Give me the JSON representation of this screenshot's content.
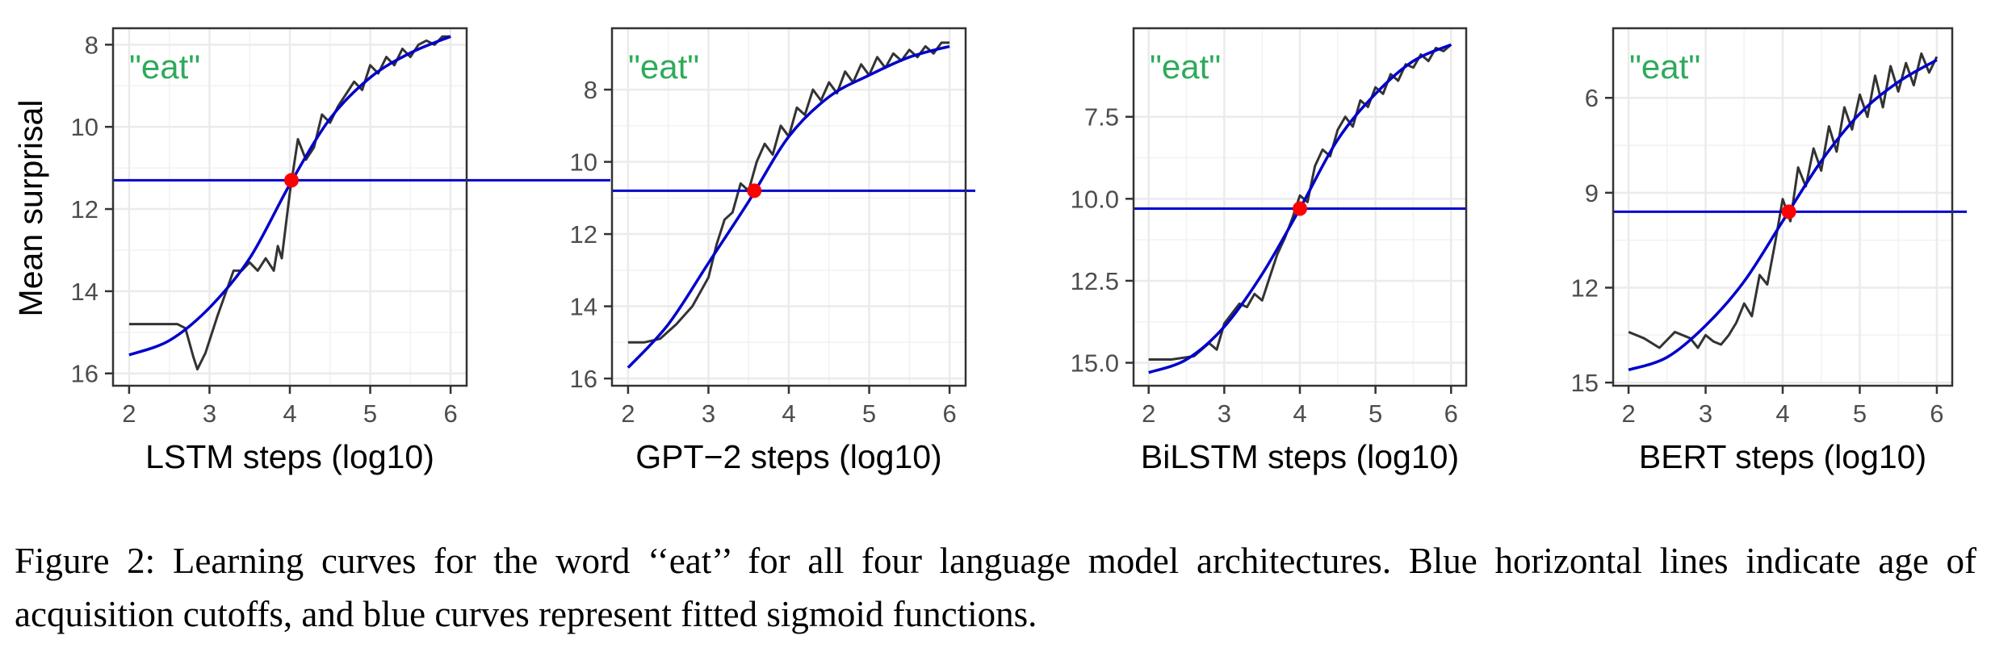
{
  "ylabel": "Mean surprisal",
  "caption": "Figure 2: Learning curves for the word ‘‘eat’’ for all four language model architectures. Blue horizontal lines indicate age of acquisition cutoffs, and blue curves represent fitted sigmoid functions.",
  "colors": {
    "fit_curve": "#0000cc",
    "cutoff_line": "#0000cc",
    "observed": "#333333",
    "aoa_point": "#ff0000",
    "word_label": "#2eaa5a",
    "grid": "#ebebeb"
  },
  "chart_data": [
    {
      "type": "line",
      "model": "LSTM",
      "xlabel": "LSTM steps (log10)",
      "annotation": "\"eat\"",
      "x_ticks": [
        2,
        3,
        4,
        5,
        6
      ],
      "y_ticks": [
        8,
        10,
        12,
        14,
        16
      ],
      "xlim": [
        1.8,
        6.2
      ],
      "ylim": [
        7.6,
        16.3
      ],
      "y_reversed": true,
      "cutoff": 11.3,
      "aoa": {
        "x": 4.02,
        "y": 11.3
      },
      "sigmoid": {
        "x": [
          2.0,
          2.5,
          3.0,
          3.5,
          4.0,
          4.5,
          5.0,
          5.5,
          6.0
        ],
        "y": [
          15.55,
          15.2,
          14.4,
          13.2,
          11.4,
          9.8,
          8.8,
          8.2,
          7.8
        ]
      },
      "series": [
        {
          "name": "observed",
          "x": [
            2.0,
            2.3,
            2.6,
            2.7,
            2.8,
            2.85,
            2.95,
            3.1,
            3.3,
            3.4,
            3.5,
            3.6,
            3.7,
            3.8,
            3.85,
            3.9,
            4.0,
            4.1,
            4.2,
            4.3,
            4.4,
            4.5,
            4.6,
            4.7,
            4.8,
            4.9,
            5.0,
            5.1,
            5.2,
            5.3,
            5.4,
            5.5,
            5.6,
            5.7,
            5.8,
            5.9,
            6.0
          ],
          "y": [
            14.8,
            14.8,
            14.8,
            14.9,
            15.6,
            15.9,
            15.5,
            14.6,
            13.5,
            13.5,
            13.3,
            13.5,
            13.2,
            13.5,
            12.9,
            13.2,
            11.6,
            10.3,
            10.8,
            10.5,
            9.7,
            9.9,
            9.5,
            9.2,
            8.9,
            9.1,
            8.5,
            8.7,
            8.3,
            8.5,
            8.1,
            8.3,
            8.0,
            7.9,
            8.0,
            7.8,
            7.8
          ]
        }
      ]
    },
    {
      "type": "line",
      "model": "GPT-2",
      "xlabel": "GPT−2 steps (log10)",
      "annotation": "\"eat\"",
      "x_ticks": [
        2,
        3,
        4,
        5,
        6
      ],
      "y_ticks": [
        8,
        10,
        12,
        14,
        16
      ],
      "xlim": [
        1.8,
        6.2
      ],
      "ylim": [
        6.3,
        16.2
      ],
      "y_reversed": true,
      "cutoff": 10.8,
      "aoa": {
        "x": 3.57,
        "y": 10.8
      },
      "sigmoid": {
        "x": [
          2.0,
          2.5,
          3.0,
          3.5,
          4.0,
          4.5,
          5.0,
          5.5,
          6.0
        ],
        "y": [
          15.7,
          14.5,
          12.8,
          11.1,
          9.3,
          8.2,
          7.6,
          7.1,
          6.8
        ]
      },
      "series": [
        {
          "name": "observed",
          "x": [
            2.0,
            2.2,
            2.4,
            2.6,
            2.8,
            3.0,
            3.1,
            3.2,
            3.3,
            3.4,
            3.5,
            3.6,
            3.7,
            3.8,
            3.9,
            4.0,
            4.1,
            4.2,
            4.3,
            4.4,
            4.5,
            4.6,
            4.7,
            4.8,
            4.9,
            5.0,
            5.1,
            5.2,
            5.3,
            5.4,
            5.5,
            5.6,
            5.7,
            5.8,
            5.9,
            6.0
          ],
          "y": [
            15.0,
            15.0,
            14.9,
            14.5,
            14.0,
            13.2,
            12.3,
            11.6,
            11.4,
            10.6,
            10.8,
            10.0,
            9.5,
            9.8,
            9.0,
            9.3,
            8.5,
            8.7,
            8.0,
            8.3,
            7.8,
            8.1,
            7.5,
            7.8,
            7.3,
            7.6,
            7.1,
            7.4,
            7.0,
            7.2,
            6.9,
            7.1,
            6.8,
            7.0,
            6.7,
            6.7
          ]
        }
      ]
    },
    {
      "type": "line",
      "model": "BiLSTM",
      "xlabel": "BiLSTM steps (log10)",
      "annotation": "\"eat\"",
      "x_ticks": [
        2,
        3,
        4,
        5,
        6
      ],
      "y_ticks": [
        7.5,
        10.0,
        12.5,
        15.0
      ],
      "y_tick_labels": [
        "7.5",
        "10.0",
        "12.5",
        "15.0"
      ],
      "xlim": [
        1.8,
        6.2
      ],
      "ylim": [
        4.8,
        15.7
      ],
      "y_reversed": true,
      "cutoff": 10.3,
      "aoa": {
        "x": 4.0,
        "y": 10.3
      },
      "sigmoid": {
        "x": [
          2.0,
          2.5,
          3.0,
          3.5,
          4.0,
          4.5,
          5.0,
          5.5,
          6.0
        ],
        "y": [
          15.3,
          14.9,
          13.9,
          12.3,
          10.3,
          8.2,
          6.8,
          5.8,
          5.3
        ]
      },
      "series": [
        {
          "name": "observed",
          "x": [
            2.0,
            2.3,
            2.6,
            2.8,
            2.9,
            3.0,
            3.1,
            3.2,
            3.3,
            3.4,
            3.5,
            3.6,
            3.7,
            3.8,
            3.9,
            4.0,
            4.1,
            4.2,
            4.3,
            4.4,
            4.5,
            4.6,
            4.7,
            4.8,
            4.9,
            5.0,
            5.1,
            5.2,
            5.3,
            5.4,
            5.5,
            5.6,
            5.7,
            5.8,
            5.9,
            6.0
          ],
          "y": [
            14.9,
            14.9,
            14.8,
            14.4,
            14.6,
            13.8,
            13.5,
            13.2,
            13.3,
            12.9,
            13.1,
            12.4,
            11.7,
            11.2,
            10.6,
            9.9,
            10.1,
            9.0,
            8.5,
            8.7,
            7.9,
            7.5,
            7.8,
            7.0,
            7.2,
            6.6,
            6.8,
            6.2,
            6.4,
            5.9,
            6.0,
            5.6,
            5.8,
            5.4,
            5.5,
            5.3
          ]
        }
      ]
    },
    {
      "type": "line",
      "model": "BERT",
      "xlabel": "BERT steps (log10)",
      "annotation": "\"eat\"",
      "x_ticks": [
        2,
        3,
        4,
        5,
        6
      ],
      "y_ticks": [
        6,
        9,
        12,
        15
      ],
      "xlim": [
        1.8,
        6.2
      ],
      "ylim": [
        3.8,
        15.1
      ],
      "y_reversed": true,
      "cutoff": 9.6,
      "aoa": {
        "x": 4.08,
        "y": 9.6
      },
      "sigmoid": {
        "x": [
          2.0,
          2.5,
          3.0,
          3.5,
          4.0,
          4.5,
          5.0,
          5.5,
          6.0
        ],
        "y": [
          14.6,
          14.2,
          13.2,
          11.8,
          9.9,
          8.0,
          6.5,
          5.5,
          4.8
        ]
      },
      "series": [
        {
          "name": "observed",
          "x": [
            2.0,
            2.2,
            2.4,
            2.6,
            2.8,
            2.9,
            3.0,
            3.1,
            3.2,
            3.3,
            3.4,
            3.5,
            3.6,
            3.7,
            3.8,
            3.9,
            4.0,
            4.1,
            4.2,
            4.3,
            4.4,
            4.5,
            4.6,
            4.7,
            4.8,
            4.9,
            5.0,
            5.1,
            5.2,
            5.3,
            5.4,
            5.5,
            5.6,
            5.7,
            5.8,
            5.9,
            6.0
          ],
          "y": [
            13.4,
            13.6,
            13.9,
            13.4,
            13.6,
            13.9,
            13.5,
            13.7,
            13.8,
            13.5,
            13.1,
            12.5,
            12.9,
            11.6,
            11.9,
            10.6,
            9.2,
            9.9,
            8.2,
            8.8,
            7.6,
            8.3,
            6.9,
            7.7,
            6.3,
            7.0,
            5.9,
            6.6,
            5.3,
            6.3,
            5.0,
            5.8,
            4.9,
            5.6,
            4.6,
            5.2,
            4.7
          ]
        }
      ]
    }
  ]
}
